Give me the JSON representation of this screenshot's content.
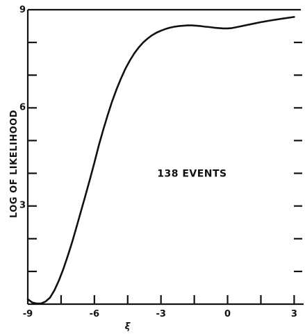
{
  "chart_data": {
    "type": "line",
    "title": "",
    "xlabel": "ξ",
    "ylabel": "LOG OF LIKELIHOOD",
    "xlim": [
      -9,
      3.3
    ],
    "ylim": [
      0,
      9
    ],
    "x_ticks": [
      -9,
      -6,
      -3,
      0,
      3
    ],
    "x_tick_labels": [
      "-9",
      "-6",
      "-3",
      "0",
      "3"
    ],
    "x_minor_ticks": [
      -7.5,
      -4.5,
      -1.5,
      1.5
    ],
    "y_ticks": [
      3,
      6,
      9
    ],
    "y_tick_labels": [
      "3",
      "6",
      "9"
    ],
    "y_minor_ticks": [
      1,
      2,
      4,
      5,
      7,
      8
    ],
    "grid": false,
    "annotation": {
      "text": "138 EVENTS",
      "x": -1.6,
      "y": 3.9
    },
    "series": [
      {
        "name": "",
        "x": [
          -9.0,
          -8.8,
          -8.6,
          -8.4,
          -8.2,
          -8.0,
          -7.8,
          -7.6,
          -7.4,
          -7.2,
          -7.0,
          -6.8,
          -6.6,
          -6.4,
          -6.2,
          -6.0,
          -5.8,
          -5.6,
          -5.4,
          -5.2,
          -5.0,
          -4.8,
          -4.6,
          -4.4,
          -4.2,
          -4.0,
          -3.8,
          -3.6,
          -3.4,
          -3.2,
          -3.0,
          -2.8,
          -2.6,
          -2.4,
          -2.2,
          -2.0,
          -1.8,
          -1.6,
          -1.4,
          -1.2,
          -1.0,
          -0.8,
          -0.6,
          -0.4,
          -0.2,
          0.0,
          0.2,
          0.5,
          1.0,
          1.5,
          2.0,
          2.5,
          3.0
        ],
        "y": [
          0.15,
          0.05,
          0.02,
          0.02,
          0.08,
          0.2,
          0.42,
          0.72,
          1.07,
          1.47,
          1.9,
          2.37,
          2.85,
          3.33,
          3.82,
          4.33,
          4.85,
          5.33,
          5.78,
          6.2,
          6.57,
          6.9,
          7.2,
          7.45,
          7.67,
          7.85,
          8.0,
          8.12,
          8.22,
          8.3,
          8.36,
          8.41,
          8.45,
          8.48,
          8.5,
          8.51,
          8.52,
          8.52,
          8.51,
          8.5,
          8.48,
          8.47,
          8.45,
          8.44,
          8.43,
          8.43,
          8.44,
          8.48,
          8.55,
          8.62,
          8.68,
          8.73,
          8.78
        ]
      }
    ]
  }
}
